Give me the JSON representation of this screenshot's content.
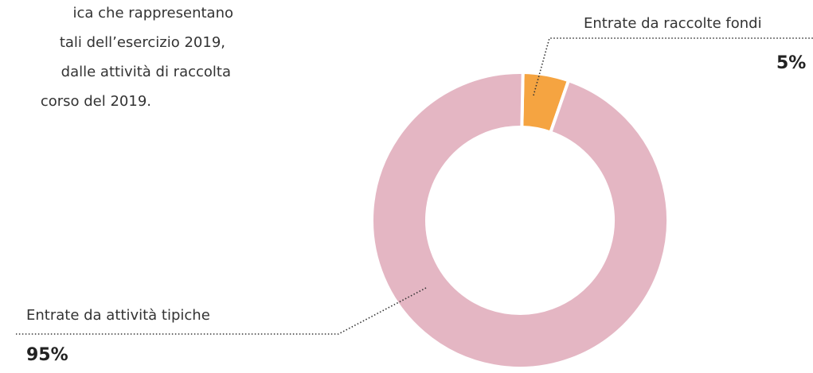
{
  "chart_data": {
    "type": "pie",
    "description": [
      "ica che rappresentano",
      "tali dell’esercizio 2019,",
      "dalle attività di raccolta",
      "corso del 2019."
    ],
    "categories": [
      "Entrate da raccolte fondi",
      "Entrate da attività tipiche"
    ],
    "values": [
      5,
      95
    ],
    "value_labels": [
      "5%",
      "95%"
    ],
    "colors": [
      "#f5a441",
      "#e4b6c3"
    ],
    "donut": true
  }
}
